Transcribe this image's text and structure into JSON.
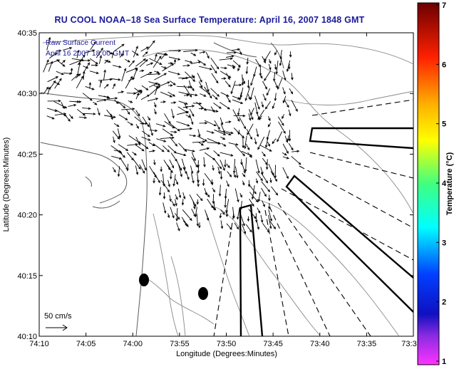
{
  "title": "RU COOL  NOAA–18  Sea Surface Temperature:  April 16, 2007 1848 GMT",
  "legend": {
    "line1": "Raw Surface Current",
    "line2": "April 16 2007 18:00 GMT",
    "scale_label": "50 cm/s"
  },
  "axes": {
    "xlabel": "Longitude (Degrees:Minutes)",
    "ylabel": "Latitude (Degrees:Minutes)",
    "xticks": [
      "74:10",
      "74:05",
      "74:00",
      "73:55",
      "73:50",
      "73:45",
      "73:40",
      "73:35",
      "73:3"
    ],
    "yticks": [
      "40:35",
      "40:30",
      "40:25",
      "40:20",
      "40:15",
      "40:10"
    ]
  },
  "colorbar": {
    "label": "Temperature (°C)",
    "ticks": [
      "7",
      "6",
      "5",
      "4",
      "3",
      "2",
      "1"
    ],
    "range": [
      1,
      7
    ],
    "colors": [
      "#7a0000",
      "#ff0000",
      "#ffb000",
      "#ffff00",
      "#00ff80",
      "#00ffff",
      "#0060ff",
      "#1010b0",
      "#ff00ff"
    ]
  },
  "chart_data": {
    "type": "map",
    "xlabel": "Longitude (Degrees:Minutes)",
    "ylabel": "Latitude (Degrees:Minutes)",
    "xlim": [
      "74:10",
      "73:30"
    ],
    "ylim": [
      "40:10",
      "40:35"
    ],
    "markers": [
      {
        "lon": "73:58.8",
        "lat": "40:14.3"
      },
      {
        "lon": "73:52.2",
        "lat": "40:12.6"
      }
    ]
  }
}
